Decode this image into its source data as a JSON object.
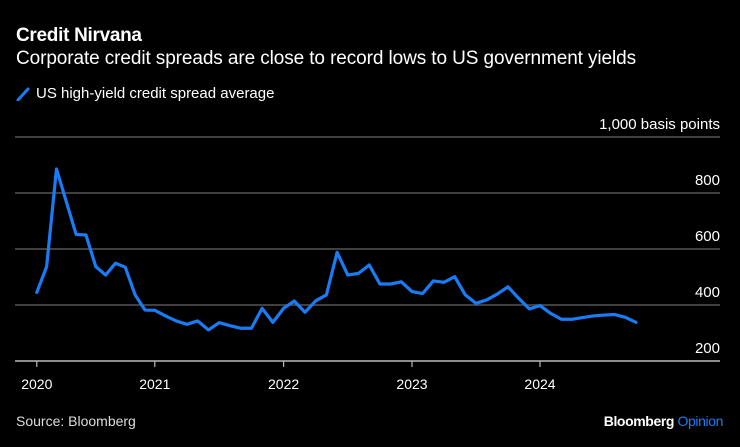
{
  "header": {
    "title": "Credit Nirvana",
    "subtitle": "Corporate credit spreads are close to record lows to US government yields"
  },
  "footer": {
    "source": "Source: Bloomberg",
    "brand": "Bloomberg",
    "brand_suffix": "Opinion"
  },
  "chart_data": {
    "type": "line",
    "title": "Credit Nirvana",
    "subtitle": "Corporate credit spreads are close to record lows to US government yields",
    "ylabel": "1,000 basis points",
    "ylim": [
      200,
      1000
    ],
    "yticks": [
      200,
      400,
      600,
      800,
      1000
    ],
    "ytick_labels": [
      "200",
      "400",
      "600",
      "800",
      "1,000 basis points"
    ],
    "xticks": [
      "2020",
      "2021",
      "2022",
      "2023",
      "2024"
    ],
    "grid": true,
    "legend_position": "top-left",
    "series_color": "#1a7cf5",
    "series": [
      {
        "name": "US high-yield credit spread average",
        "x_start": "2020-01",
        "frequency": "monthly",
        "values": [
          445,
          537,
          886,
          769,
          652,
          650,
          537,
          507,
          549,
          535,
          436,
          382,
          381,
          361,
          343,
          331,
          343,
          311,
          337,
          326,
          317,
          317,
          388,
          338,
          388,
          414,
          374,
          415,
          436,
          588,
          507,
          513,
          543,
          475,
          475,
          483,
          448,
          441,
          486,
          481,
          501,
          436,
          406,
          418,
          439,
          465,
          424,
          386,
          398,
          370,
          349,
          349,
          355,
          361,
          364,
          366,
          356,
          338
        ]
      }
    ]
  }
}
